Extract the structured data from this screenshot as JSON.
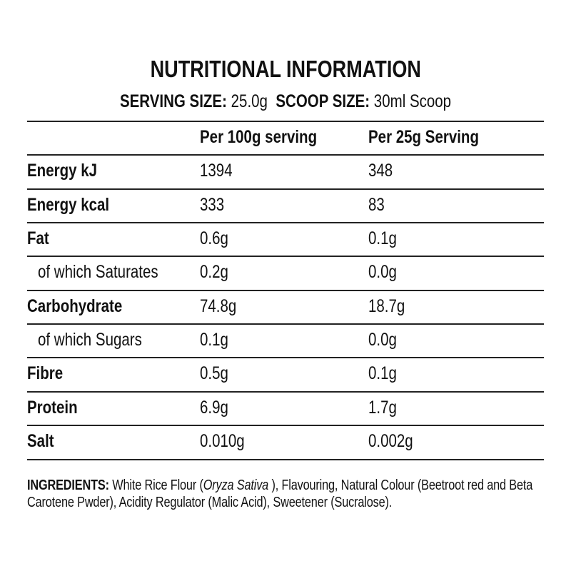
{
  "title": "NUTRITIONAL INFORMATION",
  "serving": {
    "serving_label": "SERVING SIZE:",
    "serving_value": "25.0g",
    "scoop_label": "SCOOP SIZE:",
    "scoop_value": "30ml Scoop"
  },
  "table": {
    "headers": [
      "",
      "Per 100g serving",
      "Per 25g Serving"
    ],
    "rows": [
      {
        "name": "Energy kJ",
        "per100": "1394",
        "per25": "348",
        "sub": false
      },
      {
        "name": "Energy kcal",
        "per100": "333",
        "per25": "83",
        "sub": false
      },
      {
        "name": "Fat",
        "per100": "0.6g",
        "per25": "0.1g",
        "sub": false
      },
      {
        "name": "of which Saturates",
        "per100": "0.2g",
        "per25": "0.0g",
        "sub": true
      },
      {
        "name": "Carbohydrate",
        "per100": "74.8g",
        "per25": "18.7g",
        "sub": false
      },
      {
        "name": "of which Sugars",
        "per100": "0.1g",
        "per25": "0.0g",
        "sub": true
      },
      {
        "name": "Fibre",
        "per100": "0.5g",
        "per25": "0.1g",
        "sub": false
      },
      {
        "name": "Protein",
        "per100": "6.9g",
        "per25": "1.7g",
        "sub": false
      },
      {
        "name": "Salt",
        "per100": "0.010g",
        "per25": "0.002g",
        "sub": false
      }
    ]
  },
  "ingredients": {
    "label": "INGREDIENTS:",
    "text_before": " White Rice Flour (",
    "italic": "Oryza Sativa",
    "text_after": " ), Flavouring, Natural Colour (Beetroot red and Beta Carotene Pwder), Acidity Regulator (Malic Acid), Sweetener (Sucralose)."
  }
}
